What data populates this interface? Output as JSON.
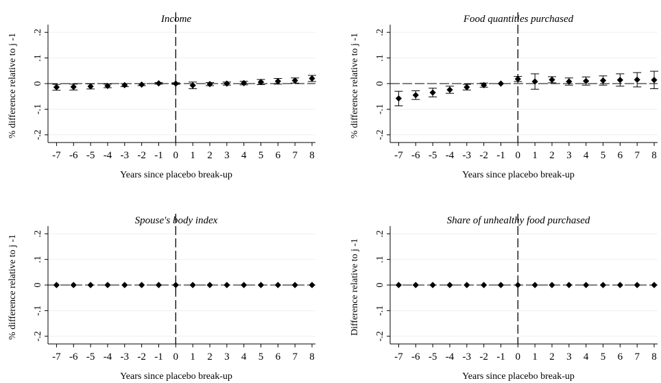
{
  "chart_data": [
    {
      "type": "scatter",
      "title": "Income",
      "xlabel": "Years since placebo break-up",
      "ylabel": "% difference relative to j -1",
      "x": [
        -7,
        -6,
        -5,
        -4,
        -3,
        -2,
        -1,
        0,
        1,
        2,
        3,
        4,
        5,
        6,
        7,
        8
      ],
      "y": [
        -0.014,
        -0.013,
        -0.011,
        -0.009,
        -0.006,
        -0.004,
        0.001,
        0.0,
        -0.007,
        -0.002,
        0.0,
        0.002,
        0.006,
        0.009,
        0.012,
        0.02
      ],
      "ci_low": [
        -0.026,
        -0.025,
        -0.021,
        -0.016,
        -0.012,
        -0.008,
        -0.002,
        -0.003,
        -0.02,
        -0.008,
        -0.006,
        -0.005,
        -0.004,
        -0.002,
        0.002,
        0.008
      ],
      "ci_high": [
        -0.003,
        -0.002,
        -0.001,
        -0.002,
        0.0,
        0.0,
        0.004,
        0.003,
        0.006,
        0.004,
        0.006,
        0.009,
        0.016,
        0.02,
        0.022,
        0.032
      ],
      "xticks": [
        "-7",
        "-6",
        "-5",
        "-4",
        "-3",
        "-2",
        "-1",
        "0",
        "1",
        "2",
        "3",
        "4",
        "5",
        "6",
        "7",
        "8"
      ],
      "yticks": [
        "-.2",
        "-.1",
        "0",
        ".1",
        ".2"
      ],
      "ylim": [
        -0.23,
        0.23
      ],
      "xlim": [
        -7.5,
        8.2
      ],
      "reference_line_x": 0,
      "grid": true
    },
    {
      "type": "scatter",
      "title": "Food quantities purchased",
      "xlabel": "Years since placebo break-up",
      "ylabel": "% difference relative to j -1",
      "x": [
        -7,
        -6,
        -5,
        -4,
        -3,
        -2,
        -1,
        0,
        1,
        2,
        3,
        4,
        5,
        6,
        7,
        8
      ],
      "y": [
        -0.058,
        -0.045,
        -0.035,
        -0.024,
        -0.014,
        -0.006,
        0.0,
        0.018,
        0.008,
        0.015,
        0.008,
        0.01,
        0.012,
        0.014,
        0.015,
        0.014
      ],
      "ci_low": [
        -0.087,
        -0.062,
        -0.052,
        -0.038,
        -0.025,
        -0.014,
        -0.002,
        0.008,
        -0.022,
        0.003,
        -0.006,
        -0.006,
        -0.006,
        -0.01,
        -0.013,
        -0.02
      ],
      "ci_high": [
        -0.03,
        -0.028,
        -0.018,
        -0.01,
        -0.003,
        0.002,
        0.003,
        0.028,
        0.038,
        0.027,
        0.022,
        0.026,
        0.03,
        0.038,
        0.043,
        0.048
      ],
      "xticks": [
        "-7",
        "-6",
        "-5",
        "-4",
        "-3",
        "-2",
        "-1",
        "0",
        "1",
        "2",
        "3",
        "4",
        "5",
        "6",
        "7",
        "8"
      ],
      "yticks": [
        "-.2",
        "-.1",
        "0",
        ".1",
        ".2"
      ],
      "ylim": [
        -0.23,
        0.23
      ],
      "xlim": [
        -7.5,
        8.2
      ],
      "reference_line_x": 0,
      "grid": true
    },
    {
      "type": "scatter",
      "title": "Spouse's body index",
      "xlabel": "Years since placebo break-up",
      "ylabel": "% difference relative to j -1",
      "x": [
        -7,
        -6,
        -5,
        -4,
        -3,
        -2,
        -1,
        0,
        1,
        2,
        3,
        4,
        5,
        6,
        7,
        8
      ],
      "y": [
        0,
        0,
        0,
        0,
        0,
        0,
        0,
        0,
        0,
        0,
        0,
        0,
        0,
        0,
        0,
        0
      ],
      "ci_low": [
        -0.001,
        -0.001,
        -0.001,
        -0.001,
        -0.001,
        -0.001,
        -0.001,
        -0.001,
        -0.001,
        -0.001,
        -0.001,
        -0.001,
        -0.001,
        -0.001,
        -0.001,
        -0.001
      ],
      "ci_high": [
        0.001,
        0.001,
        0.001,
        0.001,
        0.001,
        0.001,
        0.001,
        0.001,
        0.001,
        0.001,
        0.001,
        0.001,
        0.001,
        0.001,
        0.001,
        0.001
      ],
      "xticks": [
        "-7",
        "-6",
        "-5",
        "-4",
        "-3",
        "-2",
        "-1",
        "0",
        "1",
        "2",
        "3",
        "4",
        "5",
        "6",
        "7",
        "8"
      ],
      "yticks": [
        "-.2",
        "-.1",
        "0",
        ".1",
        ".2"
      ],
      "ylim": [
        -0.23,
        0.23
      ],
      "xlim": [
        -7.5,
        8.2
      ],
      "reference_line_x": 0,
      "grid": true
    },
    {
      "type": "scatter",
      "title": "Share of unhealthy food purchased",
      "xlabel": "Years since placebo break-up",
      "ylabel": "Difference relative to j -1",
      "x": [
        -7,
        -6,
        -5,
        -4,
        -3,
        -2,
        -1,
        0,
        1,
        2,
        3,
        4,
        5,
        6,
        7,
        8
      ],
      "y": [
        0,
        0,
        0,
        0,
        0,
        0,
        0,
        0,
        0,
        0,
        0,
        0,
        0,
        0,
        0,
        0
      ],
      "ci_low": [
        -0.001,
        -0.001,
        -0.001,
        -0.001,
        -0.001,
        -0.001,
        -0.001,
        -0.001,
        -0.001,
        -0.001,
        -0.001,
        -0.001,
        -0.001,
        -0.001,
        -0.001,
        -0.001
      ],
      "ci_high": [
        0.001,
        0.001,
        0.001,
        0.001,
        0.001,
        0.001,
        0.001,
        0.001,
        0.001,
        0.001,
        0.001,
        0.001,
        0.001,
        0.001,
        0.001,
        0.001
      ],
      "xticks": [
        "-7",
        "-6",
        "-5",
        "-4",
        "-3",
        "-2",
        "-1",
        "0",
        "1",
        "2",
        "3",
        "4",
        "5",
        "6",
        "7",
        "8"
      ],
      "yticks": [
        "-.2",
        "-.1",
        "0",
        ".1",
        ".2"
      ],
      "ylim": [
        -0.23,
        0.23
      ],
      "xlim": [
        -7.5,
        8.2
      ],
      "reference_line_x": 0,
      "grid": true
    }
  ]
}
